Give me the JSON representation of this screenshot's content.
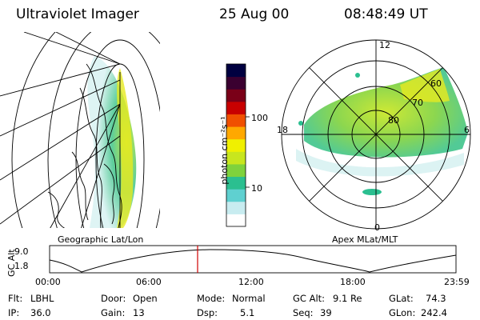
{
  "header": {
    "instrument": "Ultraviolet Imager",
    "date": "25 Aug 00",
    "time": "08:48:49 UT"
  },
  "geo_panel": {
    "label": "Geographic Lat/Lon"
  },
  "colorbar": {
    "unit_label": "photon cm⁻²s⁻¹",
    "ticks": [
      "100",
      "10"
    ],
    "scale": "log",
    "colors": [
      "#ffffff",
      "#c8ecf0",
      "#5fd0d0",
      "#2bbf90",
      "#7fd23c",
      "#c8e61e",
      "#f0f000",
      "#ffa800",
      "#f05000",
      "#c80000",
      "#7a0018",
      "#3a0030",
      "#000040"
    ]
  },
  "polar_panel": {
    "label": "Apex MLat/MLT",
    "mlt_labels": {
      "top": "12",
      "left": "18",
      "right": "6",
      "bottom": "0"
    },
    "lat_labels": [
      "60",
      "70",
      "80"
    ]
  },
  "altitude_plot": {
    "ylabel": "GC Alt",
    "yticks": [
      "9.0",
      "1.8"
    ],
    "xticks": [
      "00:00",
      "06:00",
      "12:00",
      "18:00",
      "23:59"
    ],
    "marker_color": "#d00000"
  },
  "status": {
    "flt_label": "Flt:",
    "flt_value": "LBHL",
    "ip_label": "IP:",
    "ip_value": "36.0",
    "door_label": "Door:",
    "door_value": "Open",
    "gain_label": "Gain:",
    "gain_value": "13",
    "mode_label": "Mode:",
    "mode_value": "Normal",
    "dsp_label": "Dsp:",
    "dsp_value": "5.1",
    "gcalt_label": "GC Alt:",
    "gcalt_value": "9.1 Re",
    "seq_label": "Seq:",
    "seq_value": "39",
    "glat_label": "GLat:",
    "glat_value": "74.3",
    "glon_label": "GLon:",
    "glon_value": "242.4"
  }
}
